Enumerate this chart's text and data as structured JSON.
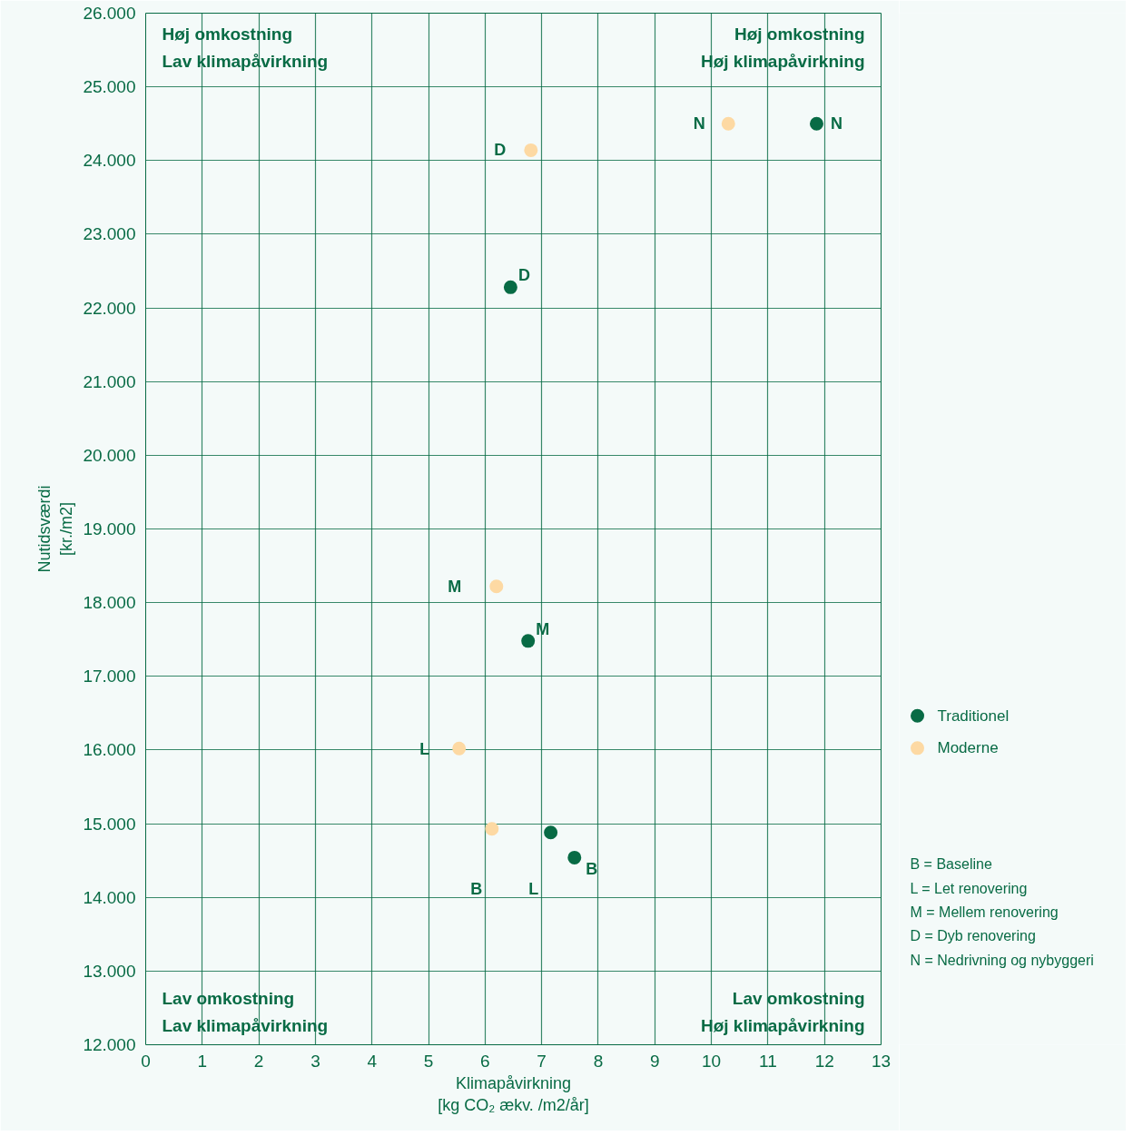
{
  "chart_data": {
    "type": "scatter",
    "xlabel": "Klimapåvirkning\n[kg CO₂ ækv. /m2/år]",
    "ylabel": "Nutidsværdi\n[kr./m2]",
    "xlim": [
      0,
      13
    ],
    "xticks": [
      0,
      1,
      2,
      3,
      4,
      5,
      6,
      7,
      8,
      9,
      10,
      11,
      12,
      13
    ],
    "ylim": [
      12000,
      26000
    ],
    "yticks": [
      {
        "value": 12000,
        "label": "12.000"
      },
      {
        "value": 13000,
        "label": "13.000"
      },
      {
        "value": 14000,
        "label": "14.000"
      },
      {
        "value": 15000,
        "label": "15.000"
      },
      {
        "value": 16000,
        "label": "16.000"
      },
      {
        "value": 17000,
        "label": "17.000"
      },
      {
        "value": 18000,
        "label": "18.000"
      },
      {
        "value": 19000,
        "label": "19.000"
      },
      {
        "value": 20000,
        "label": "20.000"
      },
      {
        "value": 21000,
        "label": "21.000"
      },
      {
        "value": 22000,
        "label": "22.000"
      },
      {
        "value": 23000,
        "label": "23.000"
      },
      {
        "value": 24000,
        "label": "24.000"
      },
      {
        "value": 25000,
        "label": "25.000"
      },
      {
        "value": 26000,
        "label": "26.000"
      }
    ],
    "grid": true,
    "legend": "right",
    "marker": "circle",
    "series": [
      {
        "name": "Traditionel",
        "color": "#086b45",
        "x": [
          11.86,
          6.45,
          6.76,
          7.16,
          7.58
        ],
        "values": [
          24500,
          22280,
          17480,
          14880,
          14540
        ],
        "value_labels": [
          "N",
          "D",
          "M",
          "L",
          "B"
        ]
      },
      {
        "name": "Moderne",
        "color": "#fdd9a3",
        "x": [
          10.3,
          6.81,
          6.2,
          5.54,
          6.12
        ],
        "values": [
          24500,
          24140,
          18220,
          16020,
          14930
        ],
        "value_labels": [
          "N",
          "D",
          "M",
          "L",
          "B"
        ]
      }
    ],
    "annotations": [
      "Høj omkostning\nLav klimapåvirkning",
      "Høj omkostning\nHøj klimapåvirkning",
      "Lav omkostning\nLav klimapåvirkning",
      "Lav omkostning\nHøj klimapåvirkning",
      "B = Baseline",
      "L  = Let renovering",
      "M = Mellem renovering",
      "D = Dyb renovering",
      "N = Nedrivning og nybyggeri"
    ]
  }
}
